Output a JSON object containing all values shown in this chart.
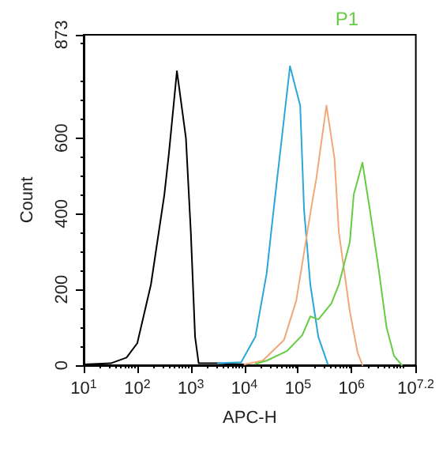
{
  "chart_data": {
    "type": "line",
    "xlabel": "APC-H",
    "ylabel": "Count",
    "log": "x",
    "xlim": [
      10,
      15848932
    ],
    "xticks": [
      {
        "value": 10,
        "label": "10$^{1}$"
      },
      {
        "value": 100,
        "label": "10$^{2}$"
      },
      {
        "value": 1000,
        "label": "10$^{3}$"
      },
      {
        "value": 10000,
        "label": "10$^{4}$"
      },
      {
        "value": 100000,
        "label": "10$^{5}$"
      },
      {
        "value": 1000000,
        "label": "10$^{6}$"
      },
      {
        "value": 15848932,
        "label": "10$^{7.2}$"
      }
    ],
    "ylim": [
      0,
      873
    ],
    "yticks": [
      0,
      200,
      400,
      600,
      873
    ],
    "grid": false,
    "legend": "top right",
    "marker": "none",
    "line_style": "solid",
    "series": [
      {
        "color": "#000000",
        "x": [
          10,
          32,
          63,
          100,
          180,
          320,
          390,
          550,
          810,
          1000,
          1200,
          1400,
          3200,
          10000
        ],
        "values": [
          2,
          5,
          20,
          58,
          213,
          450,
          560,
          777,
          600,
          351,
          75,
          5,
          5,
          2
        ]
      },
      {
        "color": "#29a8d8",
        "x": [
          3200,
          8700,
          16000,
          26000,
          34000,
          71000,
          110000,
          130000,
          170000,
          240000,
          360000
        ],
        "values": [
          5,
          8,
          75,
          242,
          393,
          790,
          686,
          410,
          213,
          75,
          3
        ]
      },
      {
        "color": "#f0a878",
        "x": [
          10000,
          22000,
          55000,
          93000,
          180000,
          220000,
          340000,
          480000,
          580000,
          930000,
          1300000,
          1600000
        ],
        "values": [
          2,
          12,
          67,
          171,
          422,
          493,
          686,
          547,
          351,
          142,
          33,
          0
        ]
      },
      {
        "name": "P1",
        "color": "#66cc44",
        "x": [
          16000,
          26000,
          63000,
          120000,
          170000,
          240000,
          420000,
          580000,
          930000,
          1100000,
          1600000,
          2200000,
          3200000,
          4500000,
          6200000,
          8700000
        ],
        "values": [
          3,
          12,
          38,
          79,
          129,
          121,
          163,
          213,
          326,
          451,
          535,
          410,
          255,
          100,
          25,
          0
        ]
      }
    ]
  }
}
